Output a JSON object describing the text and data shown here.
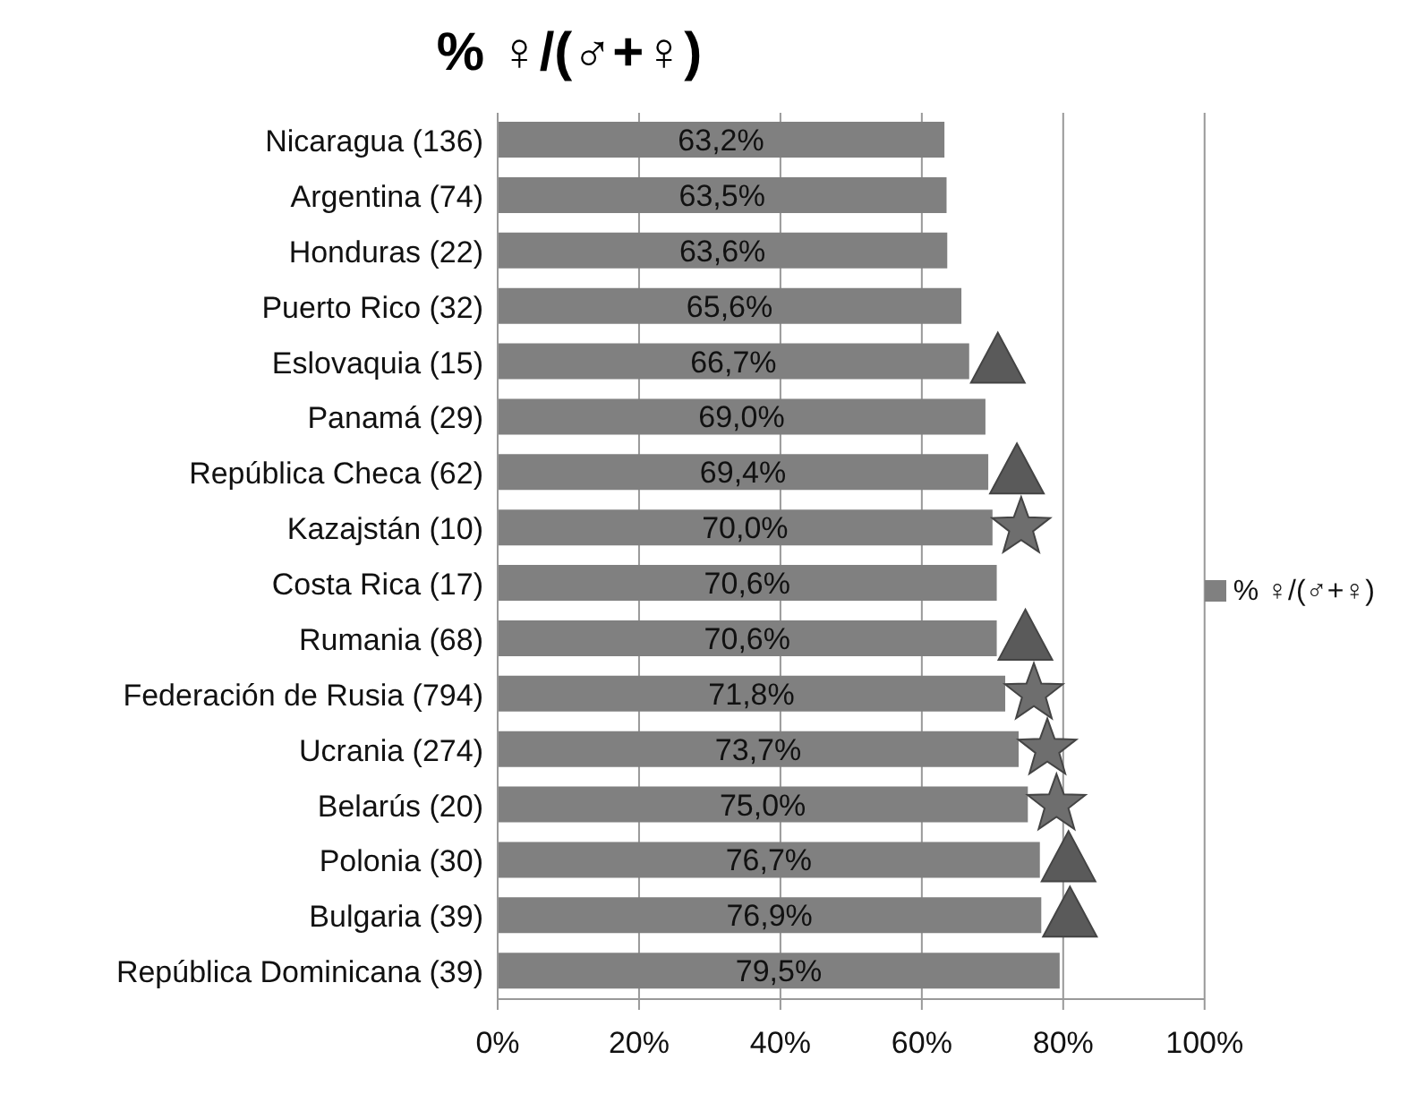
{
  "chart_data": {
    "type": "bar",
    "orientation": "horizontal",
    "title": "% ♀/(♂+♀)",
    "categories": [
      "Nicaragua (136)",
      "Argentina (74)",
      "Honduras (22)",
      "Puerto Rico (32)",
      "Eslovaquia (15)",
      "Panamá (29)",
      "República Checa (62)",
      "Kazajstán (10)",
      "Costa Rica (17)",
      "Rumania (68)",
      "Federación de Rusia (794)",
      "Ucrania (274)",
      "Belarús (20)",
      "Polonia (30)",
      "Bulgaria (39)",
      "República Dominicana (39)"
    ],
    "series": [
      {
        "name": "% ♀/(♂+♀)",
        "color": "#808080",
        "values": [
          63.2,
          63.5,
          63.6,
          65.6,
          66.7,
          69.0,
          69.4,
          70.0,
          70.6,
          70.6,
          71.8,
          73.7,
          75.0,
          76.7,
          76.9,
          79.5
        ],
        "value_labels": [
          "63,2%",
          "63,5%",
          "63,6%",
          "65,6%",
          "66,7%",
          "69,0%",
          "69,4%",
          "70,0%",
          "70,6%",
          "70,6%",
          "71,8%",
          "73,7%",
          "75,0%",
          "76,7%",
          "76,9%",
          "79,5%"
        ]
      }
    ],
    "xlim": [
      0,
      100
    ],
    "xticks": [
      {
        "value": 0,
        "label": "0%"
      },
      {
        "value": 20,
        "label": "20%"
      },
      {
        "value": 40,
        "label": "40%"
      },
      {
        "value": 60,
        "label": "60%"
      },
      {
        "value": 80,
        "label": "80%"
      },
      {
        "value": 100,
        "label": "100%"
      }
    ],
    "grid": "x",
    "legend": "right"
  }
}
